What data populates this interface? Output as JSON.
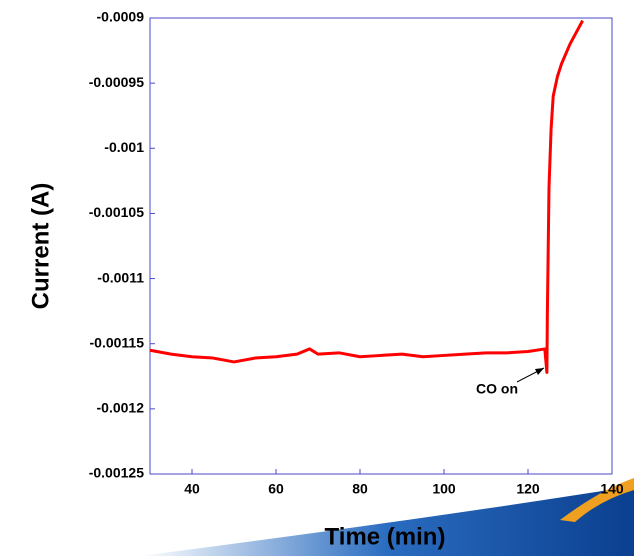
{
  "chart_data": {
    "type": "line",
    "x_label": "Time (min)",
    "y_label": "Current (A)",
    "annotation": "CO on",
    "xlim": [
      30,
      140
    ],
    "xticks": [
      40,
      60,
      80,
      100,
      120,
      140
    ],
    "ylim": [
      -0.00125,
      -0.0009
    ],
    "yticks": [
      -0.0009,
      -0.00095,
      -0.001,
      -0.00105,
      -0.0011,
      -0.00115,
      -0.0012,
      -0.00125
    ],
    "x": [
      30,
      35,
      40,
      45,
      50,
      55,
      60,
      65,
      68,
      70,
      75,
      80,
      85,
      90,
      95,
      100,
      105,
      110,
      115,
      120,
      124,
      124.5,
      124.6,
      125,
      125.5,
      126,
      127,
      128,
      130,
      132,
      133
    ],
    "series": [
      {
        "color": "#ff0000",
        "values": [
          -0.001155,
          -0.001158,
          -0.00116,
          -0.001161,
          -0.001164,
          -0.001161,
          -0.00116,
          -0.001158,
          -0.001154,
          -0.001158,
          -0.001157,
          -0.00116,
          -0.001159,
          -0.001158,
          -0.00116,
          -0.001159,
          -0.001158,
          -0.001157,
          -0.001157,
          -0.001156,
          -0.001154,
          -0.001172,
          -0.00113,
          -0.00103,
          -0.000985,
          -0.00096,
          -0.000945,
          -0.000935,
          -0.00092,
          -0.000908,
          -0.000902
        ]
      }
    ]
  }
}
